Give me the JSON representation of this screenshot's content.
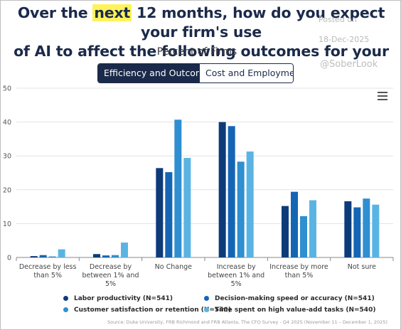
{
  "headline": {
    "pre": "Over the ",
    "highlight": "next",
    "post": " 12 months, how do you expect your firm's use",
    "line2": "of AI to affect the following outcomes for your firm?"
  },
  "watermark": {
    "line1": "Posted on",
    "line2": "18-Dec-2025",
    "handle": "@SoberLook"
  },
  "tabs": [
    {
      "label": "Efficiency and Outcomes",
      "active": true
    },
    {
      "label": "Cost and Employment",
      "active": false
    }
  ],
  "menu": {
    "icon": "hamburger-menu-icon"
  },
  "chart_data": {
    "type": "bar",
    "title": "Percent of Firms",
    "ylim": [
      0,
      50
    ],
    "yticks": [
      0,
      10,
      20,
      30,
      40,
      50
    ],
    "grid": true,
    "legend_position": "bottom",
    "categories": [
      [
        "Decrease by less",
        "than 5%"
      ],
      [
        "Decrease by",
        "between 1% and",
        "5%"
      ],
      [
        "No Change"
      ],
      [
        "Increase by",
        "between 1% and",
        "5%"
      ],
      [
        "Increase by more",
        "than 5%"
      ],
      [
        "Not sure"
      ]
    ],
    "series": [
      {
        "name": "Labor productivity (N=541)",
        "color": "#0d3b7a",
        "values": [
          0.4,
          1.0,
          26.4,
          40.0,
          15.2,
          16.6
        ]
      },
      {
        "name": "Decision-making speed or accuracy (N=541)",
        "color": "#1565b5",
        "values": [
          0.7,
          0.6,
          25.2,
          38.8,
          19.4,
          14.8
        ]
      },
      {
        "name": "Customer satisfaction or retention (N=540)",
        "color": "#2f8fd0",
        "values": [
          0.3,
          0.7,
          40.7,
          28.3,
          12.2,
          17.4
        ]
      },
      {
        "name": "Time spent on high value-add tasks (N=540)",
        "color": "#5ab4e3",
        "values": [
          2.4,
          4.4,
          29.4,
          31.3,
          16.9,
          15.6
        ]
      }
    ]
  },
  "source": "Source: Duke University, FRB Richmond and FRB Atlanta, The CFO Survey - Q4 2025 (November 11 – December 1, 2025)"
}
